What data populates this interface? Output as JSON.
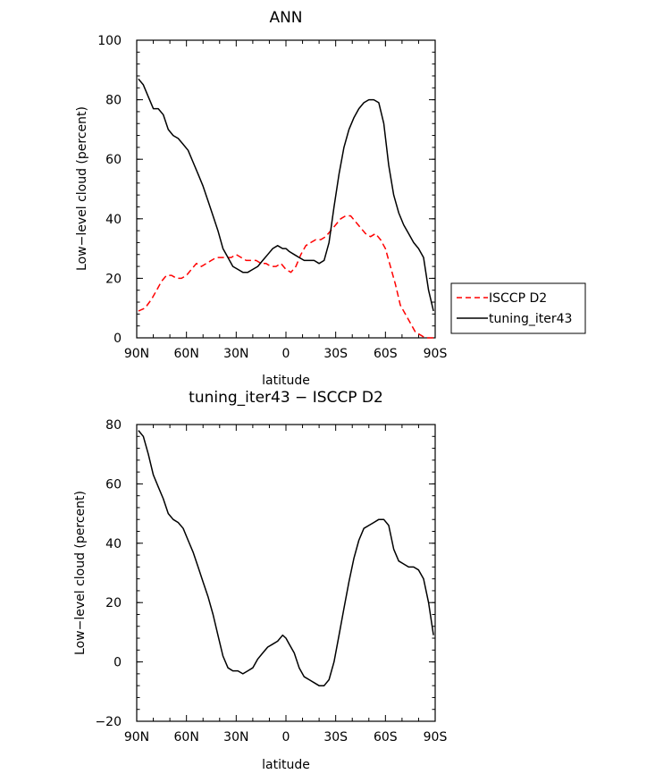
{
  "chart_data": [
    {
      "type": "line",
      "title": "ANN",
      "xlabel": "latitude",
      "ylabel": "Low−level cloud (percent)",
      "xlim": [
        90,
        -90
      ],
      "ylim": [
        0,
        100
      ],
      "x_tick_values": [
        90,
        60,
        30,
        0,
        -30,
        -60,
        -90
      ],
      "x_tick_labels": [
        "90N",
        "60N",
        "30N",
        "0",
        "30S",
        "60S",
        "90S"
      ],
      "y_tick_values": [
        0,
        20,
        40,
        60,
        80,
        100
      ],
      "y_tick_labels": [
        "0",
        "20",
        "40",
        "60",
        "80",
        "100"
      ],
      "legend": "outside-right",
      "grid": false,
      "series": [
        {
          "name": "ISCCP D2",
          "color": "#ff0000",
          "dash": "dashed",
          "x": [
            89,
            85,
            81,
            78,
            75,
            72,
            69,
            66,
            63,
            60,
            57,
            54,
            51,
            48,
            45,
            42,
            39,
            36,
            33,
            30,
            27,
            24,
            21,
            18,
            15,
            12,
            9,
            6,
            3,
            0,
            -3,
            -6,
            -9,
            -12,
            -15,
            -18,
            -21,
            -24,
            -27,
            -30,
            -33,
            -36,
            -39,
            -42,
            -45,
            -48,
            -51,
            -54,
            -57,
            -60,
            -63,
            -66,
            -69,
            -72,
            -75,
            -78,
            -81,
            -84,
            -87,
            -89
          ],
          "y": [
            9,
            10,
            13,
            16,
            19,
            21,
            21,
            20,
            20,
            21,
            23,
            25,
            24,
            25,
            26,
            27,
            27,
            27,
            27,
            28,
            27,
            26,
            26,
            26,
            25,
            25,
            24,
            24,
            25,
            23,
            22,
            24,
            28,
            31,
            32,
            33,
            33,
            34,
            36,
            38,
            40,
            41,
            41,
            39,
            37,
            35,
            34,
            35,
            33,
            30,
            24,
            18,
            11,
            8,
            5,
            2,
            1,
            0,
            0,
            0
          ]
        },
        {
          "name": "tuning_iter43",
          "color": "#000000",
          "dash": "solid",
          "x": [
            89,
            86,
            83,
            80,
            77,
            74,
            71,
            68,
            65,
            62,
            59,
            56,
            53,
            50,
            47,
            44,
            41,
            38,
            35,
            32,
            29,
            26,
            23,
            20,
            17,
            14,
            11,
            8,
            5,
            2,
            0,
            -2,
            -5,
            -8,
            -11,
            -14,
            -17,
            -20,
            -23,
            -26,
            -29,
            -32,
            -35,
            -38,
            -41,
            -44,
            -47,
            -50,
            -53,
            -56,
            -59,
            -62,
            -65,
            -68,
            -71,
            -74,
            -77,
            -80,
            -83,
            -86,
            -89
          ],
          "y": [
            87,
            85,
            81,
            77,
            77,
            75,
            70,
            68,
            67,
            65,
            63,
            59,
            55,
            51,
            46,
            41,
            36,
            30,
            27,
            24,
            23,
            22,
            22,
            23,
            24,
            26,
            28,
            30,
            31,
            30,
            30,
            29,
            28,
            27,
            26,
            26,
            26,
            25,
            26,
            32,
            44,
            55,
            64,
            70,
            74,
            77,
            79,
            80,
            80,
            79,
            72,
            58,
            48,
            42,
            38,
            35,
            32,
            30,
            27,
            16,
            9
          ]
        }
      ]
    },
    {
      "type": "line",
      "title": "tuning_iter43 − ISCCP D2",
      "xlabel": "latitude",
      "ylabel": "Low−level cloud (percent)",
      "xlim": [
        90,
        -90
      ],
      "ylim": [
        -20,
        80
      ],
      "x_tick_values": [
        90,
        60,
        30,
        0,
        -30,
        -60,
        -90
      ],
      "x_tick_labels": [
        "90N",
        "60N",
        "30N",
        "0",
        "30S",
        "60S",
        "90S"
      ],
      "y_tick_values": [
        -20,
        0,
        20,
        40,
        60,
        80
      ],
      "y_tick_labels": [
        "−20",
        "0",
        "20",
        "40",
        "60",
        "80"
      ],
      "grid": false,
      "series": [
        {
          "color": "#000000",
          "dash": "solid",
          "x": [
            89,
            86,
            83,
            80,
            77,
            74,
            71,
            68,
            65,
            62,
            59,
            56,
            53,
            50,
            47,
            44,
            41,
            38,
            35,
            32,
            29,
            26,
            23,
            20,
            17,
            14,
            11,
            8,
            5,
            2,
            0,
            -2,
            -5,
            -8,
            -11,
            -14,
            -17,
            -20,
            -23,
            -26,
            -29,
            -32,
            -35,
            -38,
            -41,
            -44,
            -47,
            -50,
            -53,
            -56,
            -59,
            -62,
            -65,
            -68,
            -71,
            -74,
            -77,
            -80,
            -83,
            -86,
            -89
          ],
          "y": [
            78,
            76,
            70,
            63,
            59,
            55,
            50,
            48,
            47,
            45,
            41,
            37,
            32,
            27,
            22,
            16,
            9,
            2,
            -2,
            -3,
            -3,
            -4,
            -3,
            -2,
            1,
            3,
            5,
            6,
            7,
            9,
            8,
            6,
            3,
            -2,
            -5,
            -6,
            -7,
            -8,
            -8,
            -6,
            0,
            9,
            18,
            27,
            35,
            41,
            45,
            46,
            47,
            48,
            48,
            46,
            38,
            34,
            33,
            32,
            32,
            31,
            28,
            20,
            9
          ]
        }
      ]
    }
  ]
}
